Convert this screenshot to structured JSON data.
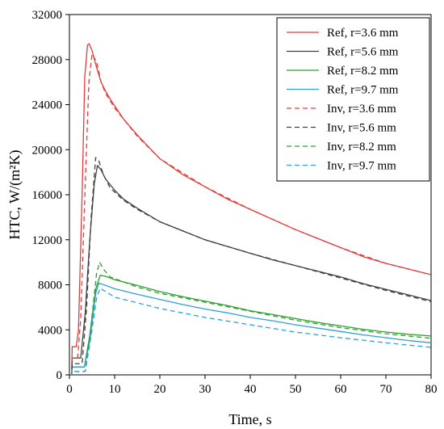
{
  "chart_data": {
    "type": "line",
    "xlabel": "Time, s",
    "ylabel": "HTC, W/(m²K)",
    "xlim": [
      0,
      80
    ],
    "ylim": [
      0,
      32000
    ],
    "x_ticks": [
      0,
      10,
      20,
      30,
      40,
      50,
      60,
      70,
      80
    ],
    "y_ticks": [
      0,
      4000,
      8000,
      12000,
      16000,
      20000,
      24000,
      28000,
      32000
    ],
    "grid": false,
    "legend_position": "top-right",
    "series": [
      {
        "name": "Ref,  r=3.6 mm",
        "color": "#e03c3c",
        "style": "solid",
        "points": [
          [
            0,
            0
          ],
          [
            0.5,
            0
          ],
          [
            0.6,
            2500
          ],
          [
            1.5,
            2500
          ],
          [
            2,
            4000
          ],
          [
            2.8,
            16000
          ],
          [
            3.4,
            26500
          ],
          [
            4.0,
            29300
          ],
          [
            4.4,
            29400
          ],
          [
            5,
            28800
          ],
          [
            6,
            27300
          ],
          [
            7,
            26000
          ],
          [
            8,
            25200
          ],
          [
            9,
            24500
          ],
          [
            10,
            23900
          ],
          [
            12,
            22700
          ],
          [
            15,
            21300
          ],
          [
            20,
            19200
          ],
          [
            25,
            17800
          ],
          [
            30,
            16700
          ],
          [
            35,
            15600
          ],
          [
            40,
            14700
          ],
          [
            45,
            13800
          ],
          [
            50,
            12900
          ],
          [
            55,
            12100
          ],
          [
            60,
            11300
          ],
          [
            65,
            10500
          ],
          [
            70,
            9900
          ],
          [
            75,
            9400
          ],
          [
            80,
            8900
          ]
        ]
      },
      {
        "name": "Ref,  r=5.6 mm",
        "color": "#404040",
        "style": "solid",
        "points": [
          [
            0,
            0
          ],
          [
            0.5,
            0
          ],
          [
            0.6,
            1500
          ],
          [
            2.5,
            1500
          ],
          [
            3.5,
            5500
          ],
          [
            4.5,
            12000
          ],
          [
            5.5,
            17000
          ],
          [
            6.2,
            18600
          ],
          [
            7,
            18200
          ],
          [
            8,
            17400
          ],
          [
            10,
            16400
          ],
          [
            12,
            15600
          ],
          [
            15,
            14800
          ],
          [
            20,
            13600
          ],
          [
            25,
            12800
          ],
          [
            30,
            12000
          ],
          [
            35,
            11400
          ],
          [
            40,
            10800
          ],
          [
            45,
            10200
          ],
          [
            50,
            9700
          ],
          [
            55,
            9200
          ],
          [
            60,
            8700
          ],
          [
            65,
            8100
          ],
          [
            70,
            7600
          ],
          [
            75,
            7100
          ],
          [
            80,
            6600
          ]
        ]
      },
      {
        "name": "Ref,  r=8.2 mm",
        "color": "#2ca02c",
        "style": "solid",
        "points": [
          [
            0,
            0
          ],
          [
            0.5,
            0
          ],
          [
            0.6,
            700
          ],
          [
            3.3,
            700
          ],
          [
            4.5,
            3500
          ],
          [
            5.8,
            7600
          ],
          [
            6.8,
            8850
          ],
          [
            8,
            8750
          ],
          [
            10,
            8450
          ],
          [
            15,
            7950
          ],
          [
            20,
            7400
          ],
          [
            25,
            6950
          ],
          [
            30,
            6550
          ],
          [
            35,
            6150
          ],
          [
            40,
            5700
          ],
          [
            45,
            5350
          ],
          [
            50,
            5000
          ],
          [
            55,
            4650
          ],
          [
            60,
            4350
          ],
          [
            65,
            4050
          ],
          [
            70,
            3800
          ],
          [
            75,
            3600
          ],
          [
            80,
            3450
          ]
        ]
      },
      {
        "name": "Ref,  r=9.7 mm",
        "color": "#2e9fd8",
        "style": "solid",
        "points": [
          [
            0,
            0
          ],
          [
            0.5,
            0
          ],
          [
            0.6,
            700
          ],
          [
            3.3,
            700
          ],
          [
            4.5,
            3000
          ],
          [
            5.8,
            7200
          ],
          [
            6.5,
            8150
          ],
          [
            8,
            7950
          ],
          [
            10,
            7650
          ],
          [
            15,
            7150
          ],
          [
            20,
            6700
          ],
          [
            25,
            6250
          ],
          [
            30,
            5850
          ],
          [
            35,
            5500
          ],
          [
            40,
            5100
          ],
          [
            45,
            4800
          ],
          [
            50,
            4450
          ],
          [
            55,
            4150
          ],
          [
            60,
            3850
          ],
          [
            65,
            3550
          ],
          [
            70,
            3300
          ],
          [
            75,
            3050
          ],
          [
            80,
            2850
          ]
        ]
      },
      {
        "name": "Inv, r=3.6 mm",
        "color": "#e03c3c",
        "style": "dashed",
        "points": [
          [
            0,
            0
          ],
          [
            0.5,
            0
          ],
          [
            0.6,
            1500
          ],
          [
            1.8,
            1500
          ],
          [
            2.5,
            5000
          ],
          [
            3.5,
            17000
          ],
          [
            4.3,
            26000
          ],
          [
            5.0,
            28500
          ],
          [
            6,
            27800
          ],
          [
            7,
            26000
          ],
          [
            8,
            25000
          ],
          [
            10,
            23700
          ],
          [
            15,
            21200
          ],
          [
            20,
            19200
          ],
          [
            30,
            16700
          ],
          [
            40,
            14700
          ],
          [
            50,
            12900
          ],
          [
            60,
            11300
          ],
          [
            70,
            9900
          ],
          [
            80,
            8900
          ]
        ]
      },
      {
        "name": "Inv, r=5.6 mm",
        "color": "#404040",
        "style": "dashed",
        "points": [
          [
            0,
            0
          ],
          [
            0.5,
            0
          ],
          [
            0.6,
            1000
          ],
          [
            2.8,
            1000
          ],
          [
            3.8,
            6000
          ],
          [
            4.8,
            14000
          ],
          [
            5.8,
            19300
          ],
          [
            6.5,
            19000
          ],
          [
            7.5,
            17800
          ],
          [
            9,
            16600
          ],
          [
            12,
            15500
          ],
          [
            15,
            14700
          ],
          [
            20,
            13600
          ],
          [
            30,
            12000
          ],
          [
            40,
            10800
          ],
          [
            50,
            9700
          ],
          [
            60,
            8600
          ],
          [
            70,
            7500
          ],
          [
            80,
            6500
          ]
        ]
      },
      {
        "name": "Inv, r=8.2 mm",
        "color": "#2ca02c",
        "style": "dashed",
        "points": [
          [
            0,
            0
          ],
          [
            0.5,
            0
          ],
          [
            0.6,
            300
          ],
          [
            3.5,
            300
          ],
          [
            4.8,
            4500
          ],
          [
            6.0,
            9000
          ],
          [
            6.7,
            10000
          ],
          [
            7.5,
            9400
          ],
          [
            9,
            8700
          ],
          [
            12,
            8250
          ],
          [
            15,
            7800
          ],
          [
            20,
            7250
          ],
          [
            30,
            6450
          ],
          [
            40,
            5650
          ],
          [
            50,
            4850
          ],
          [
            60,
            4200
          ],
          [
            70,
            3650
          ],
          [
            80,
            3250
          ]
        ]
      },
      {
        "name": "Inv, r=9.7 mm",
        "color": "#2e9fd8",
        "style": "dashed",
        "points": [
          [
            0,
            0
          ],
          [
            0.5,
            0
          ],
          [
            0.6,
            300
          ],
          [
            3.5,
            300
          ],
          [
            4.8,
            3500
          ],
          [
            6.0,
            6800
          ],
          [
            6.8,
            7700
          ],
          [
            8,
            7400
          ],
          [
            10,
            6900
          ],
          [
            15,
            6400
          ],
          [
            20,
            5900
          ],
          [
            30,
            5100
          ],
          [
            40,
            4450
          ],
          [
            50,
            3800
          ],
          [
            60,
            3300
          ],
          [
            70,
            2850
          ],
          [
            80,
            2450
          ]
        ]
      }
    ]
  }
}
